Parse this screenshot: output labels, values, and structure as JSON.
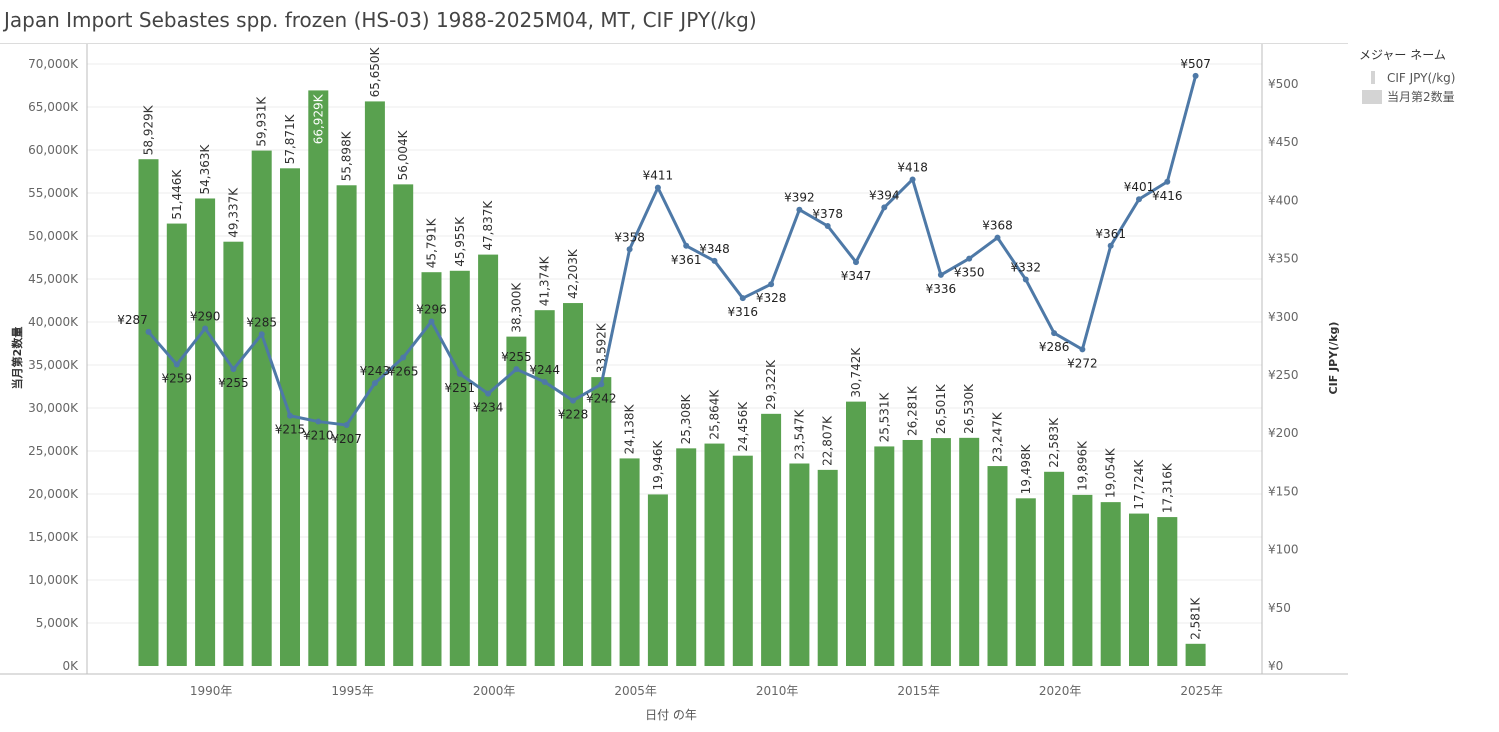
{
  "title": "Japan Import Sebastes spp. frozen (HS-03) 1988-2025M04, MT, CIF JPY(/kg)",
  "legend": {
    "title": "メジャー ネーム",
    "items": [
      {
        "label": "CIF JPY(/kg)",
        "kind": "line"
      },
      {
        "label": "当月第2数量",
        "kind": "bar"
      }
    ]
  },
  "colors": {
    "bar": "#59a14f",
    "line": "#4e79a7",
    "grid": "#ececec",
    "axis": "#bdbdbd"
  },
  "chart_data": {
    "type": "bar",
    "title": "Japan Import Sebastes spp. frozen (HS-03) 1988-2025M04, MT, CIF JPY(/kg)",
    "xlabel": "日付 の年",
    "ylabel": "当月第2数量",
    "y2label": "CIF JPY(/kg)",
    "ylim": [
      0,
      70000
    ],
    "y2lim": [
      0,
      500
    ],
    "yticks": [
      0,
      5000,
      10000,
      15000,
      20000,
      25000,
      30000,
      35000,
      40000,
      45000,
      50000,
      55000,
      60000,
      65000,
      70000
    ],
    "ytick_labels": [
      "0K",
      "5,000K",
      "10,000K",
      "15,000K",
      "20,000K",
      "25,000K",
      "30,000K",
      "35,000K",
      "40,000K",
      "45,000K",
      "50,000K",
      "55,000K",
      "60,000K",
      "65,000K",
      "70,000K"
    ],
    "y2ticks": [
      0,
      50,
      100,
      150,
      200,
      250,
      300,
      350,
      400,
      450,
      500
    ],
    "y2tick_labels": [
      "¥0",
      "¥50",
      "¥100",
      "¥150",
      "¥200",
      "¥250",
      "¥300",
      "¥350",
      "¥400",
      "¥450",
      "¥500"
    ],
    "xticks": [
      1990,
      1995,
      2000,
      2005,
      2010,
      2015,
      2020,
      2025
    ],
    "xtick_labels": [
      "1990年",
      "1995年",
      "2000年",
      "2005年",
      "2010年",
      "2015年",
      "2020年",
      "2025年"
    ],
    "grid": true,
    "legend_position": "top-right",
    "x": [
      1988,
      1989,
      1990,
      1991,
      1992,
      1993,
      1994,
      1995,
      1996,
      1997,
      1998,
      1999,
      2000,
      2001,
      2002,
      2003,
      2004,
      2005,
      2006,
      2007,
      2008,
      2009,
      2010,
      2011,
      2012,
      2013,
      2014,
      2015,
      2016,
      2017,
      2018,
      2019,
      2020,
      2021,
      2022,
      2023,
      2024,
      2025
    ],
    "series": [
      {
        "name": "当月第2数量",
        "kind": "bar",
        "values": [
          58929,
          51446,
          54363,
          49337,
          59931,
          57871,
          66929,
          55898,
          65650,
          56004,
          45791,
          45955,
          47837,
          38300,
          41374,
          42203,
          33592,
          24138,
          19946,
          25308,
          25864,
          24456,
          29322,
          23547,
          22807,
          30742,
          25531,
          26281,
          26501,
          26530,
          23247,
          19498,
          22583,
          19896,
          19054,
          17724,
          17316,
          2581
        ],
        "labels": [
          "58,929K",
          "51,446K",
          "54,363K",
          "49,337K",
          "59,931K",
          "57,871K",
          "66,929K",
          "55,898K",
          "65,650K",
          "56,004K",
          "45,791K",
          "45,955K",
          "47,837K",
          "38,300K",
          "41,374K",
          "42,203K",
          "33,592K",
          "24,138K",
          "19,946K",
          "25,308K",
          "25,864K",
          "24,456K",
          "29,322K",
          "23,547K",
          "22,807K",
          "30,742K",
          "25,531K",
          "26,281K",
          "26,501K",
          "26,530K",
          "23,247K",
          "19,498K",
          "22,583K",
          "19,896K",
          "19,054K",
          "17,724K",
          "17,316K",
          "2,581K"
        ]
      },
      {
        "name": "CIF JPY(/kg)",
        "kind": "line",
        "values": [
          287,
          259,
          290,
          255,
          285,
          215,
          210,
          207,
          243,
          265,
          296,
          251,
          234,
          255,
          244,
          228,
          242,
          358,
          411,
          361,
          348,
          316,
          328,
          392,
          378,
          347,
          394,
          418,
          336,
          350,
          368,
          332,
          286,
          272,
          361,
          401,
          416,
          507
        ],
        "labels": [
          "¥287",
          "¥259",
          "¥290",
          "¥255",
          "¥285",
          "¥215",
          "¥210",
          "¥207",
          "¥243",
          "¥265",
          "¥296",
          "¥251",
          "¥234",
          "¥255",
          "¥244",
          "¥228",
          "¥242",
          "¥358",
          "¥411",
          "¥361",
          "¥348",
          "¥316",
          "¥328",
          "¥392",
          "¥378",
          "¥347",
          "¥394",
          "¥418",
          "¥336",
          "¥350",
          "¥368",
          "¥332",
          "¥286",
          "¥272",
          "¥361",
          "¥401",
          "¥416",
          "¥507"
        ]
      }
    ]
  }
}
